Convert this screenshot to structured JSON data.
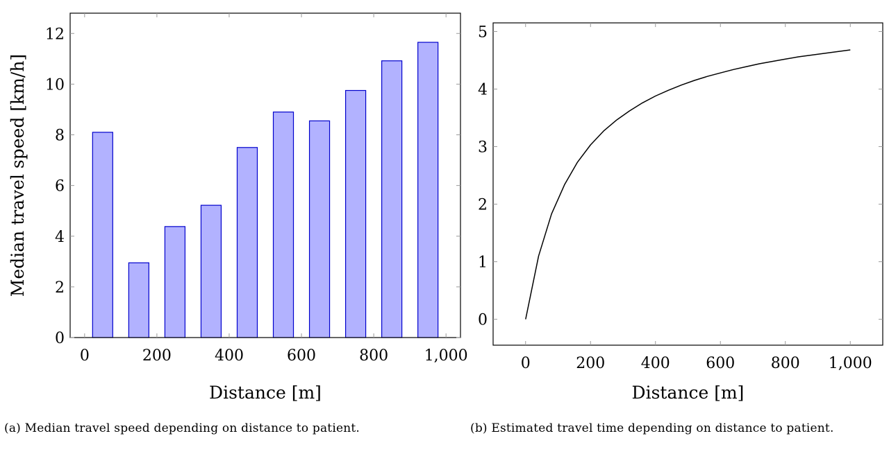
{
  "chart_data": [
    {
      "type": "bar",
      "x": [
        50,
        150,
        250,
        350,
        450,
        550,
        650,
        750,
        850,
        950
      ],
      "values": [
        8.1,
        2.95,
        4.38,
        5.22,
        7.5,
        8.9,
        8.55,
        9.75,
        10.92,
        11.65
      ],
      "xlabel": "Distance [m]",
      "ylabel": "Median travel speed [km/h]",
      "xlim": [
        -40,
        1040
      ],
      "ylim": [
        0,
        12.8
      ],
      "xticks": [
        0,
        200,
        400,
        600,
        800,
        1000
      ],
      "xtick_labels": [
        "0",
        "200",
        "400",
        "600",
        "800",
        "1,000"
      ],
      "yticks": [
        0,
        2,
        4,
        6,
        8,
        10,
        12
      ],
      "ytick_labels": [
        "0",
        "2",
        "4",
        "6",
        "8",
        "10",
        "12"
      ],
      "grid": false,
      "colors": {
        "bar_fill": "#b2b2ff",
        "bar_stroke": "#0000cc"
      },
      "caption": "(a) Median travel speed depending on distance to patient."
    },
    {
      "type": "line",
      "x": [
        0,
        40,
        80,
        120,
        160,
        200,
        240,
        280,
        320,
        360,
        400,
        440,
        480,
        520,
        560,
        600,
        640,
        680,
        720,
        760,
        800,
        840,
        880,
        920,
        960,
        1000
      ],
      "y": [
        0,
        1.1,
        1.83,
        2.34,
        2.73,
        3.03,
        3.27,
        3.46,
        3.62,
        3.76,
        3.88,
        3.98,
        4.07,
        4.15,
        4.22,
        4.28,
        4.34,
        4.39,
        4.44,
        4.48,
        4.52,
        4.56,
        4.59,
        4.62,
        4.65,
        4.68
      ],
      "xlabel": "Distance [m]",
      "ylabel": "",
      "xlim": [
        -100,
        1100
      ],
      "ylim": [
        -0.45,
        5.15
      ],
      "xticks": [
        0,
        200,
        400,
        600,
        800,
        1000
      ],
      "xtick_labels": [
        "0",
        "200",
        "400",
        "600",
        "800",
        "1,000"
      ],
      "yticks": [
        0,
        1,
        2,
        3,
        4,
        5
      ],
      "ytick_labels": [
        "0",
        "1",
        "2",
        "3",
        "4",
        "5"
      ],
      "grid": false,
      "colors": {
        "line": "#000000"
      },
      "caption": "(b) Estimated travel time depending on distance to patient."
    }
  ]
}
